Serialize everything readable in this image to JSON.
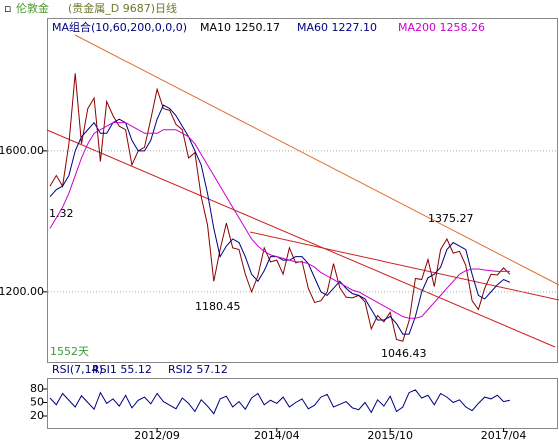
{
  "header": {
    "symbol": "伦敦金",
    "instrument": "(贵金属_D 9687)日线"
  },
  "chart_data": [
    {
      "type": "line",
      "legend_title": "MA组合(10,60,200,0,0,0)",
      "indicator_labels": [
        {
          "text": "MA10 1250.17",
          "color": "#000000"
        },
        {
          "text": "MA60 1227.10",
          "color": "#000080"
        },
        {
          "text": "MA200 1258.26",
          "color": "#cc00cc"
        }
      ],
      "annotations": [
        "1375.27",
        "1180.45",
        "1046.43",
        "1.32",
        "1552天"
      ],
      "categories": [
        null,
        null,
        null,
        null,
        null,
        null,
        null,
        null,
        null,
        null,
        null,
        null,
        null,
        null,
        null,
        null,
        null,
        "2012/09",
        null,
        null,
        null,
        null,
        null,
        null,
        null,
        null,
        null,
        null,
        null,
        null,
        null,
        null,
        null,
        null,
        null,
        null,
        "2014/04",
        null,
        null,
        null,
        null,
        null,
        null,
        null,
        null,
        null,
        null,
        null,
        null,
        null,
        null,
        null,
        null,
        null,
        "2015/10",
        null,
        null,
        null,
        null,
        null,
        null,
        null,
        null,
        null,
        null,
        null,
        null,
        null,
        null,
        null,
        null,
        null,
        "2017/04",
        null
      ],
      "series": [
        {
          "color": "#8b0000",
          "values": [
            1500,
            1530,
            1500,
            1620,
            1820,
            1620,
            1720,
            1750,
            1570,
            1740,
            1700,
            1670,
            1660,
            1560,
            1600,
            1610,
            1690,
            1775,
            1720,
            1715,
            1675,
            1660,
            1580,
            1595,
            1470,
            1390,
            1230,
            1320,
            1395,
            1325,
            1320,
            1250,
            1200,
            1245,
            1325,
            1285,
            1290,
            1250,
            1325,
            1282,
            1287,
            1210,
            1170,
            1175,
            1200,
            1280,
            1212,
            1185,
            1183,
            1190,
            1172,
            1095,
            1133,
            1115,
            1142,
            1065,
            1060,
            1118,
            1238,
            1235,
            1292,
            1215,
            1320,
            1350,
            1310,
            1315,
            1275,
            1175,
            1150,
            1210,
            1250,
            1248,
            1268,
            1250
          ]
        },
        {
          "color": "#000080",
          "values": [
            1470,
            1490,
            1500,
            1530,
            1600,
            1640,
            1660,
            1680,
            1650,
            1650,
            1680,
            1690,
            1680,
            1630,
            1600,
            1600,
            1630,
            1690,
            1730,
            1720,
            1700,
            1670,
            1640,
            1600,
            1560,
            1480,
            1380,
            1300,
            1330,
            1350,
            1340,
            1300,
            1250,
            1230,
            1260,
            1300,
            1300,
            1290,
            1290,
            1300,
            1300,
            1280,
            1240,
            1200,
            1190,
            1210,
            1230,
            1210,
            1195,
            1190,
            1180,
            1150,
            1120,
            1120,
            1130,
            1110,
            1080,
            1080,
            1130,
            1200,
            1240,
            1250,
            1270,
            1320,
            1340,
            1330,
            1320,
            1250,
            1190,
            1180,
            1200,
            1220,
            1235,
            1227
          ]
        },
        {
          "color": "#cc00cc",
          "values": [
            1380,
            1410,
            1440,
            1480,
            1530,
            1580,
            1620,
            1650,
            1660,
            1670,
            1680,
            1680,
            1680,
            1670,
            1660,
            1650,
            1650,
            1650,
            1660,
            1660,
            1660,
            1650,
            1640,
            1620,
            1590,
            1560,
            1530,
            1500,
            1470,
            1440,
            1410,
            1380,
            1350,
            1330,
            1315,
            1305,
            1300,
            1295,
            1290,
            1285,
            1285,
            1280,
            1270,
            1255,
            1245,
            1235,
            1225,
            1215,
            1205,
            1200,
            1190,
            1180,
            1170,
            1160,
            1150,
            1140,
            1130,
            1125,
            1125,
            1130,
            1150,
            1170,
            1190,
            1210,
            1230,
            1250,
            1260,
            1265,
            1265,
            1262,
            1260,
            1258,
            1258,
            1258
          ]
        }
      ],
      "ylim": [
        1001,
        1977
      ],
      "yticks": [
        {
          "value": 1200,
          "label": "1200.00"
        },
        {
          "value": 1600,
          "label": "1600.00"
        }
      ],
      "grid": true
    },
    {
      "type": "line",
      "title": "RSI(7,14)",
      "indicator_labels": [
        {
          "text": "RSI1 55.12",
          "color": "#000080"
        },
        {
          "text": "RSI2 57.12",
          "color": "#000080"
        }
      ],
      "series": [
        {
          "color": "#000080",
          "values": [
            60,
            45,
            70,
            55,
            40,
            65,
            50,
            35,
            72,
            48,
            58,
            42,
            66,
            38,
            55,
            62,
            47,
            70,
            52,
            44,
            36,
            60,
            48,
            30,
            56,
            42,
            25,
            58,
            64,
            40,
            52,
            35,
            60,
            70,
            45,
            55,
            48,
            62,
            40,
            50,
            58,
            36,
            44,
            62,
            68,
            40,
            46,
            52,
            38,
            34,
            50,
            28,
            56,
            42,
            64,
            30,
            40,
            72,
            78,
            60,
            66,
            45,
            70,
            62,
            50,
            56,
            40,
            32,
            48,
            62,
            58,
            66,
            52,
            55
          ]
        }
      ],
      "ylim": [
        0,
        100
      ],
      "yticks": [
        20,
        50,
        80
      ],
      "grid": false
    }
  ]
}
